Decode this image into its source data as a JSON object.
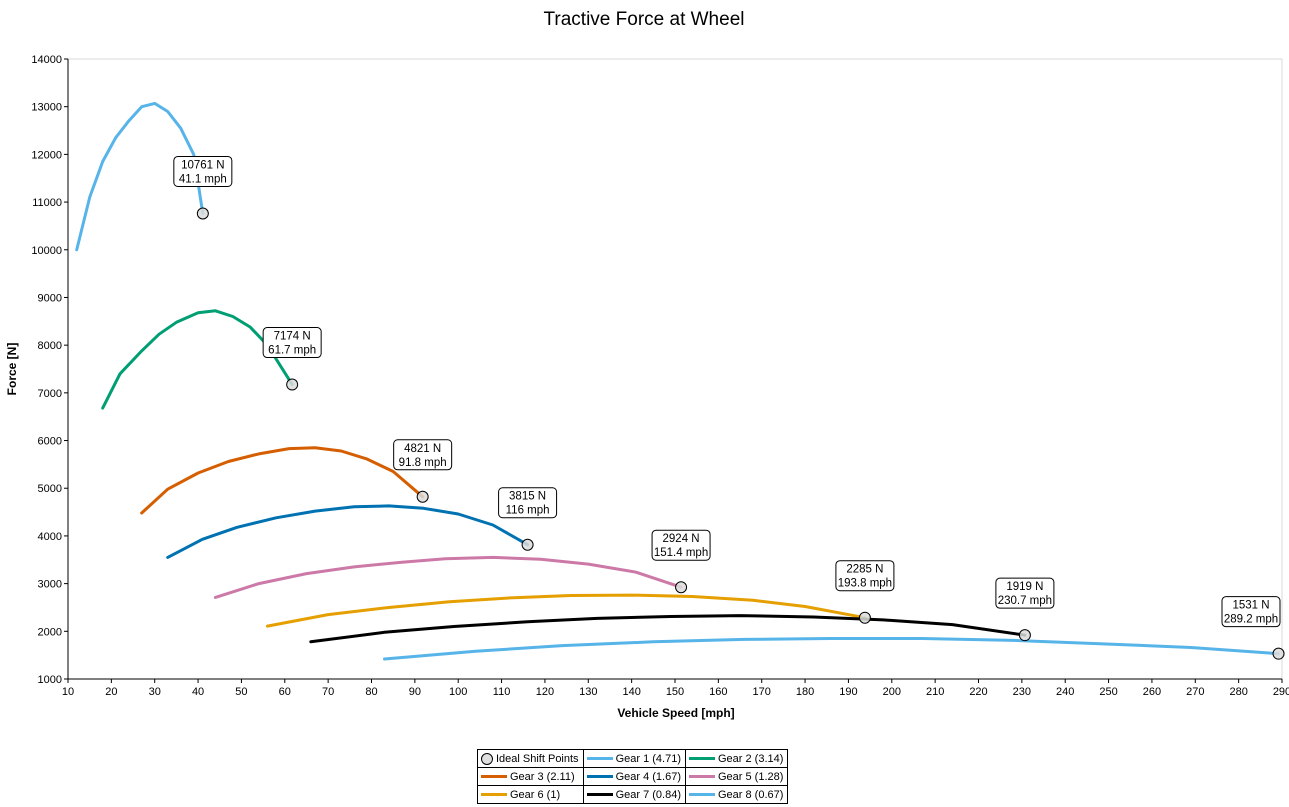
{
  "chart_data": {
    "type": "line",
    "title": "Tractive Force at Wheel",
    "xlabel": "Vehicle Speed [mph]",
    "ylabel": "Force [N]",
    "xlim": [
      10,
      290
    ],
    "ylim": [
      1000,
      14000
    ],
    "x_ticks": [
      10,
      20,
      30,
      40,
      50,
      60,
      70,
      80,
      90,
      100,
      110,
      120,
      130,
      140,
      150,
      160,
      170,
      180,
      190,
      200,
      210,
      220,
      230,
      240,
      250,
      260,
      270,
      280,
      290
    ],
    "y_ticks": [
      1000,
      2000,
      3000,
      4000,
      5000,
      6000,
      7000,
      8000,
      9000,
      10000,
      11000,
      12000,
      13000,
      14000
    ],
    "grid": false,
    "legend_position": "bottom",
    "series": [
      {
        "name": "Gear 1 (4.71)",
        "color": "#56b4e9",
        "x": [
          12,
          15,
          18,
          21,
          24,
          27,
          30,
          33,
          36,
          39,
          41.1
        ],
        "y": [
          10000,
          11100,
          11850,
          12350,
          12700,
          13000,
          13070,
          12900,
          12550,
          12000,
          10761
        ]
      },
      {
        "name": "Gear 2 (3.14)",
        "color": "#009e73",
        "x": [
          18,
          22,
          27,
          31,
          35,
          40,
          44,
          48,
          52,
          56,
          61.7
        ],
        "y": [
          6680,
          7400,
          7880,
          8230,
          8480,
          8680,
          8720,
          8600,
          8380,
          8000,
          7174
        ]
      },
      {
        "name": "Gear 3 (2.11)",
        "color": "#d55e00",
        "x": [
          27,
          33,
          40,
          47,
          54,
          61,
          67,
          73,
          79,
          85,
          91.8
        ],
        "y": [
          4480,
          4980,
          5320,
          5560,
          5720,
          5830,
          5850,
          5780,
          5610,
          5350,
          4821
        ]
      },
      {
        "name": "Gear 4 (1.67)",
        "color": "#0072b2",
        "x": [
          33,
          41,
          49,
          58,
          67,
          76,
          84,
          92,
          100,
          108,
          116
        ],
        "y": [
          3550,
          3930,
          4180,
          4380,
          4520,
          4610,
          4630,
          4580,
          4460,
          4230,
          3815
        ]
      },
      {
        "name": "Gear 5 (1.28)",
        "color": "#cc79a7",
        "x": [
          44,
          54,
          65,
          76,
          87,
          97,
          108,
          119,
          130,
          141,
          151.4
        ],
        "y": [
          2710,
          3000,
          3210,
          3350,
          3450,
          3520,
          3550,
          3510,
          3410,
          3240,
          2924
        ]
      },
      {
        "name": "Gear 6 (1)",
        "color": "#e69f00",
        "x": [
          56,
          70,
          84,
          98,
          112,
          126,
          140,
          154,
          168,
          180,
          193.8
        ],
        "y": [
          2110,
          2350,
          2500,
          2620,
          2700,
          2750,
          2760,
          2730,
          2650,
          2520,
          2285
        ]
      },
      {
        "name": "Gear 7 (0.84)",
        "color": "#000000",
        "x": [
          66,
          83,
          99,
          116,
          132,
          149,
          165,
          182,
          198,
          214,
          230.7
        ],
        "y": [
          1780,
          1980,
          2100,
          2200,
          2270,
          2310,
          2330,
          2300,
          2240,
          2140,
          1919
        ]
      },
      {
        "name": "Gear 8 (0.67)",
        "color": "#56b4e9",
        "x": [
          83,
          104,
          124,
          145,
          166,
          186,
          207,
          228,
          248,
          269,
          289.2
        ],
        "y": [
          1420,
          1580,
          1700,
          1780,
          1830,
          1850,
          1850,
          1810,
          1740,
          1660,
          1531
        ]
      }
    ],
    "shift_points": {
      "name": "Ideal Shift Points",
      "points": [
        {
          "x": 41.1,
          "y": 10761,
          "force_label": "10761 N",
          "speed_label": "41.1 mph"
        },
        {
          "x": 61.7,
          "y": 7174,
          "force_label": "7174 N",
          "speed_label": "61.7 mph"
        },
        {
          "x": 91.8,
          "y": 4821,
          "force_label": "4821 N",
          "speed_label": "91.8 mph"
        },
        {
          "x": 116,
          "y": 3815,
          "force_label": "3815 N",
          "speed_label": "116 mph"
        },
        {
          "x": 151.4,
          "y": 2924,
          "force_label": "2924 N",
          "speed_label": "151.4 mph"
        },
        {
          "x": 193.8,
          "y": 2285,
          "force_label": "2285 N",
          "speed_label": "193.8 mph"
        },
        {
          "x": 230.7,
          "y": 1919,
          "force_label": "1919 N",
          "speed_label": "230.7 mph"
        },
        {
          "x": 289.2,
          "y": 1531,
          "force_label": "1531 N",
          "speed_label": "289.2 mph"
        }
      ]
    }
  },
  "legend": {
    "rows": [
      [
        "Ideal Shift Points",
        "Gear 1 (4.71)",
        "Gear 2 (3.14)"
      ],
      [
        "Gear 3 (2.11)",
        "Gear 4 (1.67)",
        "Gear 5 (1.28)"
      ],
      [
        "Gear 6 (1)",
        "Gear 7 (0.84)",
        "Gear 8 (0.67)"
      ]
    ],
    "colors": [
      [
        "marker",
        "#56b4e9",
        "#009e73"
      ],
      [
        "#d55e00",
        "#0072b2",
        "#cc79a7"
      ],
      [
        "#e69f00",
        "#000000",
        "#56b4e9"
      ]
    ]
  }
}
